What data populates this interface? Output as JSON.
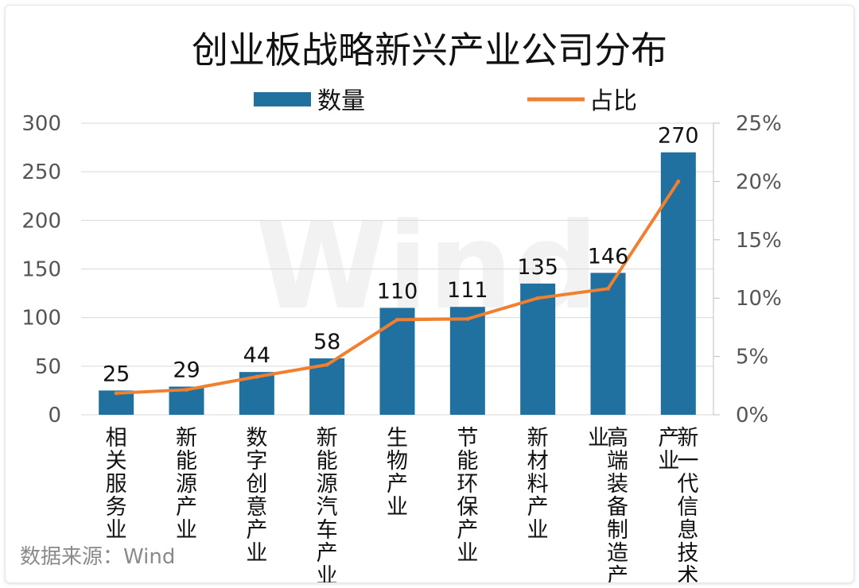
{
  "chart_data": {
    "type": "bar",
    "title": "创业板战略新兴产业公司分布",
    "categories": [
      [
        "相",
        "关",
        "服",
        "务",
        "业"
      ],
      [
        "新",
        "能",
        "源",
        "产",
        "业"
      ],
      [
        "数",
        "字",
        "创",
        "意",
        "产",
        "业"
      ],
      [
        "新",
        "能",
        "源",
        "汽",
        "车",
        "产",
        "业"
      ],
      [
        "生",
        "物",
        "产",
        "业"
      ],
      [
        "节",
        "能",
        "环",
        "保",
        "产",
        "业"
      ],
      [
        "新",
        "材",
        "料",
        "产",
        "业"
      ],
      [
        "高",
        "端",
        "装",
        "备",
        "制",
        "造",
        "产",
        "业"
      ],
      [
        "新",
        "一",
        "代",
        "信",
        "息",
        "技",
        "术",
        "产",
        "业"
      ]
    ],
    "series": [
      {
        "name": "数量",
        "type": "bar",
        "axis": "left",
        "color": "#2070a0",
        "values": [
          25,
          29,
          44,
          58,
          110,
          111,
          135,
          146,
          270
        ]
      },
      {
        "name": "占比",
        "type": "line",
        "axis": "right",
        "color": "#f08030",
        "values": [
          0.0185,
          0.0215,
          0.0326,
          0.0429,
          0.0815,
          0.0822,
          0.1,
          0.1081,
          0.2
        ]
      }
    ],
    "left_axis": {
      "min": 0,
      "max": 300,
      "ticks": [
        "0",
        "50",
        "100",
        "150",
        "200",
        "250",
        "300"
      ]
    },
    "right_axis": {
      "min": 0,
      "max": 0.25,
      "ticks": [
        "0%",
        "5%",
        "10%",
        "15%",
        "20%",
        "25%"
      ]
    },
    "legend_position": "top",
    "grid": true
  },
  "source_text": "数据来源：Wind",
  "watermark_text": "Wind"
}
